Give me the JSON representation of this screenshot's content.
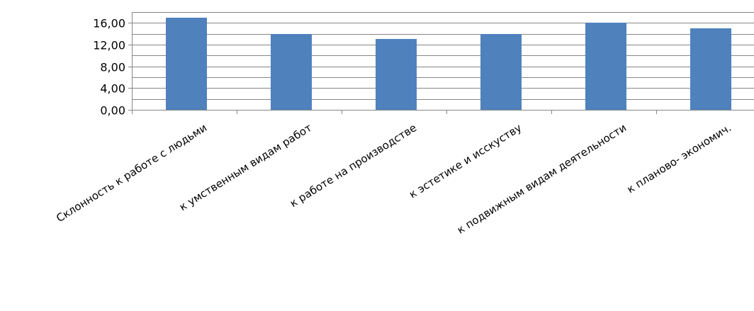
{
  "chart_data": {
    "type": "bar",
    "title": "",
    "xlabel": "",
    "ylabel": "",
    "categories": [
      "Склонность к работе с людьми",
      "к умственным видам работ",
      "к работе на производстве",
      "к эстетике и исскуству",
      "к подвижным видам деятельности",
      "к планово- экономич."
    ],
    "values": [
      17.0,
      14.0,
      13.0,
      14.0,
      16.0,
      15.0
    ],
    "y_tick_labels": [
      "0,00",
      "4,00",
      "8,00",
      "12,00",
      "16,00"
    ],
    "ylim": [
      0,
      18
    ],
    "y_minor_step": 2,
    "y_label_step": 4,
    "grid": true,
    "legend": "none",
    "bar_color": "#4f81bd",
    "grid_color": "#868686"
  }
}
